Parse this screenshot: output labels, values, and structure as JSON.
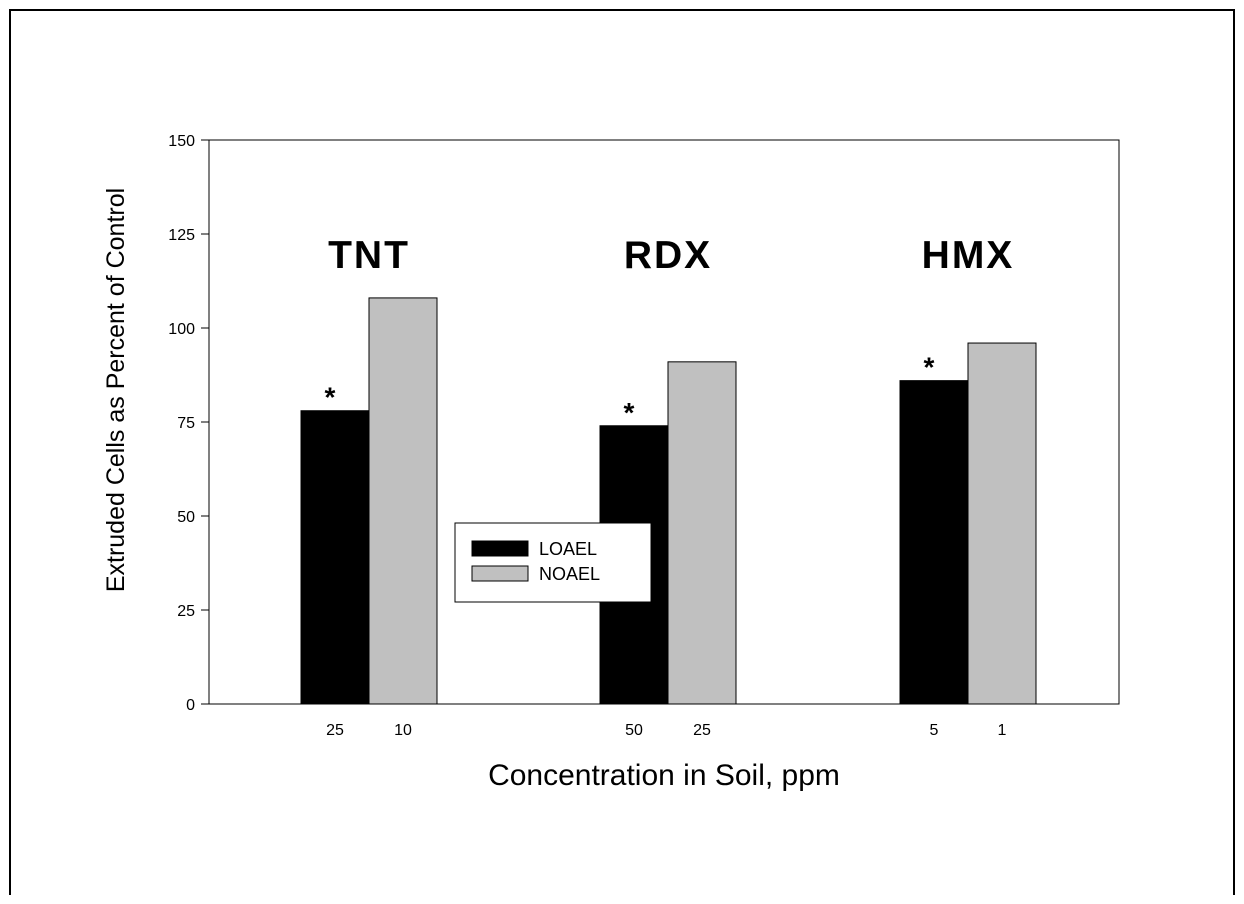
{
  "chart_data": {
    "type": "bar",
    "title": "",
    "xlabel": "Concentration in Soil, ppm",
    "ylabel": "Extruded Cells as Percent of Control",
    "ylim": [
      0,
      150
    ],
    "yticks": [
      "0",
      "25",
      "50",
      "75",
      "100",
      "125",
      "150"
    ],
    "grid": false,
    "legend_position": "center-left",
    "groups": [
      {
        "name": "TNT",
        "categories": [
          "25",
          "10"
        ]
      },
      {
        "name": "RDX",
        "categories": [
          "50",
          "25"
        ]
      },
      {
        "name": "HMX",
        "categories": [
          "5",
          "1"
        ]
      }
    ],
    "series": [
      {
        "name": "LOAEL",
        "color": "#000000",
        "values": [
          78,
          74,
          86
        ],
        "annotations": [
          "*",
          "*",
          "*"
        ]
      },
      {
        "name": "NOAEL",
        "color": "#c0c0c0",
        "values": [
          108,
          91,
          96
        ]
      }
    ]
  }
}
